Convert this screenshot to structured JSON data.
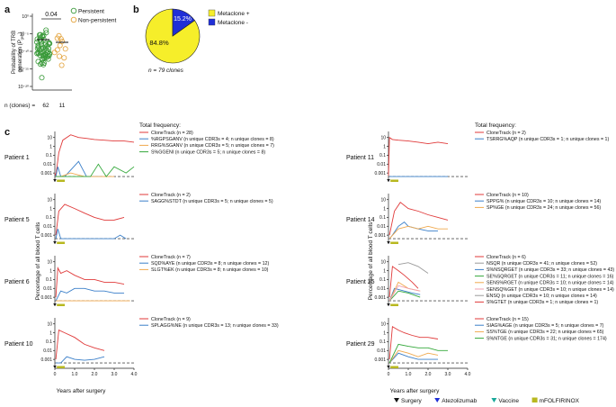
{
  "colors": {
    "clonetrack": "#e03a3a",
    "blue": "#3a7fc9",
    "orange": "#f0a94e",
    "green": "#33a83a",
    "pink": "#f2a0b0",
    "grey": "#9a9a9a",
    "persistent": "#3a9a3a",
    "nonpersistent": "#e3a23a",
    "pie_yellow": "#f6ee2a",
    "pie_blue": "#1f2fd6",
    "surgery": "#111111",
    "atezolizumab": "#1f2fd6",
    "vaccine": "#1aa89a",
    "mfolfirinox": "#b8b820"
  },
  "panel_letters": {
    "a": "a",
    "b": "b",
    "c": "c"
  },
  "panel_a": {
    "ylabel_line1": "Probability of TRB",
    "ylabel_line2": "generation (",
    "ylabel_pgen": "P",
    "ylabel_sub": "gen",
    "ylabel_close": ")",
    "y_ticks": [
      "10⁰",
      "10⁻⁵",
      "10⁻¹⁰",
      "10⁻¹⁵",
      "10⁻²⁰"
    ],
    "p_value": "0.04",
    "legend": [
      "Persistent",
      "Non-persistent"
    ],
    "n_label": "n (clones) =",
    "n_values": [
      "62",
      "11"
    ]
  },
  "panel_b": {
    "legend": [
      "Metaclone +",
      "Metaclone -"
    ],
    "pct_large": "84.8%",
    "pct_small": "15.2%",
    "n_text": "n = 79 clones"
  },
  "panel_c": {
    "total_frequency": "Total frequency:",
    "y_axis_label": "Percentage of all blood T cells",
    "x_axis_label": "Years after surgery",
    "y_ticks": [
      "10",
      "1",
      "0.1",
      "0.01",
      "0.001"
    ],
    "x_ticks": [
      "0",
      "1.0",
      "2.0",
      "3.0",
      "4.0"
    ],
    "patients": [
      {
        "name": "Patient 1",
        "legend": [
          {
            "color": "clonetrack",
            "text": "CloneTrack (n = 28)"
          },
          {
            "color": "blue",
            "text": "%RGPSGANV (n unique CDR3s = 4; n unique clones = 8)"
          },
          {
            "color": "orange",
            "text": "RRG%SGANV (n unique CDR3s = 5; n unique clones = 7)"
          },
          {
            "color": "green",
            "text": "S%GGENI (n unique CDR3s = 5; n unique clones = 8)"
          }
        ]
      },
      {
        "name": "Patient 5",
        "legend": [
          {
            "color": "clonetrack",
            "text": "CloneTrack (n = 2)"
          },
          {
            "color": "blue",
            "text": "SAGG%STDT (n unique CDR3s = 5; n unique clones = 5)"
          }
        ]
      },
      {
        "name": "Patient 6",
        "legend": [
          {
            "color": "clonetrack",
            "text": "CloneTrack (n = 7)"
          },
          {
            "color": "blue",
            "text": "SQD%AYE (n unique CDR3s = 8; n unique clones = 12)"
          },
          {
            "color": "orange",
            "text": "SLGT%EK (n unique CDR3s = 8; n unique clones = 10)"
          }
        ]
      },
      {
        "name": "Patient 10",
        "legend": [
          {
            "color": "clonetrack",
            "text": "CloneTrack (n = 9)"
          },
          {
            "color": "blue",
            "text": "SPLAGG%NE (n unique CDR3s = 13; n unique clones = 33)"
          }
        ]
      },
      {
        "name": "Patient 11",
        "legend": [
          {
            "color": "clonetrack",
            "text": "CloneTrack (n = 2)"
          },
          {
            "color": "blue",
            "text": "TSRRG%AQP (n unique CDR3s = 1; n unique clones = 1)"
          }
        ]
      },
      {
        "name": "Patient 14",
        "legend": [
          {
            "color": "clonetrack",
            "text": "CloneTrack (n = 10)"
          },
          {
            "color": "blue",
            "text": "SPPG% (n unique CDR3s = 10; n unique clones = 14)"
          },
          {
            "color": "orange",
            "text": "SP%GE (n unique CDR3s = 24; n unique clones = 56)"
          }
        ]
      },
      {
        "name": "Patient 25",
        "legend": [
          {
            "color": "clonetrack",
            "text": "CloneTrack (n = 6)"
          },
          {
            "color": "grey",
            "text": "NSQR (n unique CDR3s = 41; n unique clones = 52)"
          },
          {
            "color": "blue",
            "text": "S%NSQRGET (n unique CDR3s = 33; n unique clones = 43)"
          },
          {
            "color": "green",
            "text": "SE%SQRGET (n unique CDR3s = 11; n unique clones = 16)"
          },
          {
            "color": "orange",
            "text": "SENS%RGET (n unique CDR3s = 10; n unique clones = 14)"
          },
          {
            "color": "pink",
            "text": "SENSQ%GET (n unique CDR3s = 10; n unique clones = 14)"
          },
          {
            "color": "grey",
            "text": "ENSQ (n unique CDR3s = 10; n unique clones = 14)"
          },
          {
            "color": "clonetrack",
            "text": "S%GTET (n unique CDR3s = 1; n unique clones = 1)"
          }
        ]
      },
      {
        "name": "Patient 29",
        "legend": [
          {
            "color": "clonetrack",
            "text": "CloneTrack (n = 15)"
          },
          {
            "color": "blue",
            "text": "SIAG%AGE (n unique CDR3s = 5; n unique clones = 7)"
          },
          {
            "color": "orange",
            "text": "SS%TGE (n unique CDR3s = 22; n unique clones = 65)"
          },
          {
            "color": "green",
            "text": "S%NTGE (n unique CDR3s = 31; n unique clones = 174)"
          }
        ]
      }
    ],
    "bottom_legend": [
      {
        "color": "surgery",
        "shape": "triangle",
        "text": "Surgery"
      },
      {
        "color": "atezolizumab",
        "shape": "triangle",
        "text": "Atezolizumab"
      },
      {
        "color": "vaccine",
        "shape": "triangle",
        "text": "Vaccine"
      },
      {
        "color": "mfolfirinox",
        "shape": "square",
        "text": "mFOLFIRINOX"
      }
    ]
  },
  "chart_data": [
    {
      "type": "scatter",
      "panel": "a",
      "yscale": "log",
      "ylim": [
        1e-20,
        1
      ],
      "categories": [
        "Persistent",
        "Non-persistent"
      ],
      "series": [
        {
          "name": "Persistent",
          "median": 1e-09,
          "n": 62
        },
        {
          "name": "Non-persistent",
          "median": 1e-10,
          "n": 11
        }
      ],
      "p_value": 0.04
    },
    {
      "type": "pie",
      "panel": "b",
      "categories": [
        "Metaclone +",
        "Metaclone -"
      ],
      "values": [
        84.8,
        15.2
      ]
    },
    {
      "type": "line",
      "panel": "c",
      "yscale": "log",
      "xlim": [
        0,
        4
      ],
      "ylim": [
        0.0001,
        30
      ],
      "panels": [
        {
          "patient": "Patient 1",
          "series": [
            {
              "name": "CloneTrack",
              "color": "clonetrack",
              "x": [
                0,
                0.05,
                0.2,
                0.4,
                0.8,
                1.2,
                1.6,
                2.0,
                2.5,
                3.0,
                3.5,
                4.0
              ],
              "y": [
                0.001,
                0.0005,
                0.2,
                5,
                20,
                10,
                8,
                6,
                5,
                4,
                4,
                3
              ]
            },
            {
              "name": "%RGPSGANV",
              "color": "blue",
              "x": [
                0.05,
                0.15,
                0.3,
                0.5,
                1.2,
                1.6,
                2.0,
                2.4
              ],
              "y": [
                0.0004,
                0.005,
                0.0004,
                0.0004,
                0.02,
                0.0004,
                0.0004,
                0.0004
              ]
            },
            {
              "name": "RRG%SGANV",
              "color": "orange",
              "x": [
                0.05,
                0.3,
                0.8,
                1.5,
                2.2,
                3.0
              ],
              "y": [
                0.0004,
                0.0004,
                0.001,
                0.0004,
                0.0004,
                0.0004
              ]
            },
            {
              "name": "S%GGENI",
              "color": "green",
              "x": [
                0.05,
                0.3,
                1.0,
                1.8,
                2.2,
                2.6,
                3.0,
                3.6,
                4.0
              ],
              "y": [
                0.0004,
                0.0004,
                0.0004,
                0.0004,
                0.01,
                0.0004,
                0.005,
                0.001,
                0.005
              ]
            }
          ]
        },
        {
          "patient": "Patient 5",
          "series": [
            {
              "name": "CloneTrack",
              "color": "clonetrack",
              "x": [
                0.05,
                0.2,
                0.5,
                1.0,
                1.5,
                2.0,
                2.5,
                3.0,
                3.5
              ],
              "y": [
                0.001,
                0.5,
                3,
                1,
                0.3,
                0.1,
                0.05,
                0.05,
                0.1
              ]
            },
            {
              "name": "SAGG%STDT",
              "color": "blue",
              "x": [
                0.05,
                0.15,
                0.3,
                1.0,
                2.0,
                3.0,
                3.3,
                3.6
              ],
              "y": [
                0.0004,
                0.005,
                0.0004,
                0.0004,
                0.0004,
                0.0004,
                0.001,
                0.0004
              ]
            }
          ]
        },
        {
          "patient": "Patient 6",
          "series": [
            {
              "name": "CloneTrack",
              "color": "clonetrack",
              "x": [
                0.05,
                0.15,
                0.3,
                0.6,
                1.0,
                1.5,
                2.0,
                2.5,
                3.0,
                3.5
              ],
              "y": [
                0.001,
                2,
                0.5,
                1,
                0.3,
                0.1,
                0.1,
                0.05,
                0.05,
                0.03
              ]
            },
            {
              "name": "SQD%AYE",
              "color": "blue",
              "x": [
                0.05,
                0.3,
                0.6,
                1.0,
                1.5,
                2.0,
                2.5,
                3.0,
                3.5
              ],
              "y": [
                0.0004,
                0.005,
                0.003,
                0.01,
                0.01,
                0.005,
                0.005,
                0.003,
                0.003
              ]
            },
            {
              "name": "SLGT%EK",
              "color": "orange",
              "x": [
                0.05,
                0.5,
                1.0,
                2.0,
                3.0,
                3.8
              ],
              "y": [
                0.0004,
                0.0004,
                0.0004,
                0.0004,
                0.0004,
                0.0004
              ]
            }
          ]
        },
        {
          "patient": "Patient 10",
          "series": [
            {
              "name": "CloneTrack",
              "color": "clonetrack",
              "x": [
                0.05,
                0.2,
                0.5,
                1.0,
                1.5,
                2.0,
                2.5
              ],
              "y": [
                0.001,
                2,
                1,
                0.3,
                0.05,
                0.02,
                0.01
              ]
            },
            {
              "name": "SPLAGG%NE",
              "color": "blue",
              "x": [
                0.05,
                0.3,
                0.6,
                1.0,
                1.5,
                2.0,
                2.5
              ],
              "y": [
                0.0004,
                0.0004,
                0.002,
                0.001,
                0.0008,
                0.001,
                0.002
              ]
            }
          ]
        },
        {
          "patient": "Patient 11",
          "series": [
            {
              "name": "CloneTrack",
              "color": "clonetrack",
              "x": [
                0,
                0.05,
                0.2,
                0.5,
                1.0,
                1.5,
                2.0,
                2.5,
                3.0
              ],
              "y": [
                0.0005,
                10,
                6,
                5,
                4,
                3,
                2,
                3,
                2
              ]
            },
            {
              "name": "TSRRG%AQP",
              "color": "blue",
              "x": [
                0.05,
                0.3,
                1.0,
                2.0,
                3.0
              ],
              "y": [
                0.0004,
                0.0004,
                0.0004,
                0.0004,
                0.0004
              ]
            }
          ]
        },
        {
          "patient": "Patient 14",
          "series": [
            {
              "name": "CloneTrack",
              "color": "clonetrack",
              "x": [
                0.05,
                0.3,
                0.6,
                1.0,
                1.5,
                2.0,
                2.5,
                3.0
              ],
              "y": [
                0.001,
                0.5,
                5,
                1,
                0.5,
                0.2,
                0.1,
                0.05
              ]
            },
            {
              "name": "SPPG%",
              "color": "blue",
              "x": [
                0.05,
                0.2,
                0.5,
                0.8,
                1.0,
                1.5,
                2.0,
                2.5
              ],
              "y": [
                0.0004,
                0.001,
                0.01,
                0.03,
                0.01,
                0.005,
                0.003,
                0.003
              ]
            },
            {
              "name": "SP%GE",
              "color": "orange",
              "x": [
                0.05,
                0.5,
                1.0,
                1.5,
                2.0,
                2.5,
                3.0
              ],
              "y": [
                0.0004,
                0.005,
                0.01,
                0.005,
                0.01,
                0.005,
                0.005
              ]
            }
          ]
        },
        {
          "patient": "Patient 25",
          "series": [
            {
              "name": "CloneTrack",
              "color": "clonetrack",
              "x": [
                0.05,
                0.2,
                0.5,
                0.8,
                1.2,
                1.5
              ],
              "y": [
                0.001,
                3,
                1,
                0.3,
                0.05,
                0.01
              ]
            },
            {
              "name": "NSQR",
              "color": "grey",
              "x": [
                0.5,
                1.0,
                1.5,
                2.0
              ],
              "y": [
                5,
                8,
                3,
                0.5
              ]
            },
            {
              "name": "S%NSQRGET",
              "color": "blue",
              "x": [
                0.05,
                0.3,
                0.8,
                1.2,
                1.6
              ],
              "y": [
                0.0004,
                0.01,
                0.005,
                0.003,
                0.002
              ]
            },
            {
              "name": "SE%SQRGET",
              "color": "green",
              "x": [
                0.05,
                0.5,
                1.0,
                1.6
              ],
              "y": [
                0.0004,
                0.005,
                0.003,
                0.001
              ]
            },
            {
              "name": "SENS%RGET",
              "color": "orange",
              "x": [
                0.05,
                0.5,
                1.0,
                1.6
              ],
              "y": [
                0.0004,
                0.05,
                0.01,
                0.005
              ]
            },
            {
              "name": "SENSQ%GET",
              "color": "pink",
              "x": [
                0.05,
                0.5,
                1.0,
                1.6
              ],
              "y": [
                0.0004,
                0.02,
                0.01,
                0.005
              ]
            }
          ]
        },
        {
          "patient": "Patient 29",
          "series": [
            {
              "name": "CloneTrack",
              "color": "clonetrack",
              "x": [
                0.05,
                0.2,
                0.5,
                0.8,
                1.2,
                1.6,
                2.0,
                2.5
              ],
              "y": [
                0.001,
                5,
                2,
                1,
                0.5,
                0.3,
                0.3,
                0.2
              ]
            },
            {
              "name": "SIAG%AGE",
              "color": "blue",
              "x": [
                0.05,
                0.5,
                1.0,
                1.5,
                2.0,
                2.5
              ],
              "y": [
                0.0004,
                0.005,
                0.002,
                0.001,
                0.001,
                0.001
              ]
            },
            {
              "name": "SS%TGE",
              "color": "orange",
              "x": [
                0.05,
                0.5,
                1.0,
                1.5,
                2.0,
                2.5
              ],
              "y": [
                0.0004,
                0.01,
                0.005,
                0.002,
                0.005,
                0.003
              ]
            },
            {
              "name": "S%NTGE",
              "color": "green",
              "x": [
                0.05,
                0.5,
                1.0,
                1.5,
                2.0,
                2.5,
                3.0
              ],
              "y": [
                0.0004,
                0.05,
                0.03,
                0.02,
                0.02,
                0.01,
                0.01
              ]
            }
          ]
        }
      ]
    }
  ]
}
